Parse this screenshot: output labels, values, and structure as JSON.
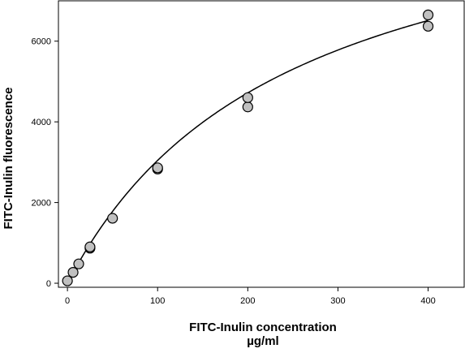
{
  "chart_data": {
    "type": "scatter",
    "xlabel": "FITC-Inulin concentration",
    "xlabel_unit": "µg/ml",
    "ylabel": "FITC-Inulin fluorescence",
    "xlim": [
      -10,
      440
    ],
    "ylim": [
      -100,
      7000
    ],
    "x_ticks": [
      0,
      100,
      200,
      300,
      400
    ],
    "y_ticks": [
      0,
      2000,
      4000,
      6000
    ],
    "grid": false,
    "legend": "none",
    "series": [
      {
        "points": [
          {
            "x": 0,
            "y": 60
          },
          {
            "x": 6.25,
            "y": 270
          },
          {
            "x": 12.5,
            "y": 480
          },
          {
            "x": 25,
            "y": 870
          },
          {
            "x": 25,
            "y": 900
          },
          {
            "x": 50,
            "y": 1610
          },
          {
            "x": 100,
            "y": 2830
          },
          {
            "x": 100,
            "y": 2860
          },
          {
            "x": 200,
            "y": 4370
          },
          {
            "x": 200,
            "y": 4600
          },
          {
            "x": 400,
            "y": 6370
          },
          {
            "x": 400,
            "y": 6650
          }
        ],
        "marker_fill": "#c0c0c0",
        "marker_stroke": "#000000"
      }
    ],
    "fit_curve": {
      "model": "hyperbola",
      "vmax": 10500,
      "km": 245,
      "x_range": [
        0,
        400
      ]
    }
  }
}
